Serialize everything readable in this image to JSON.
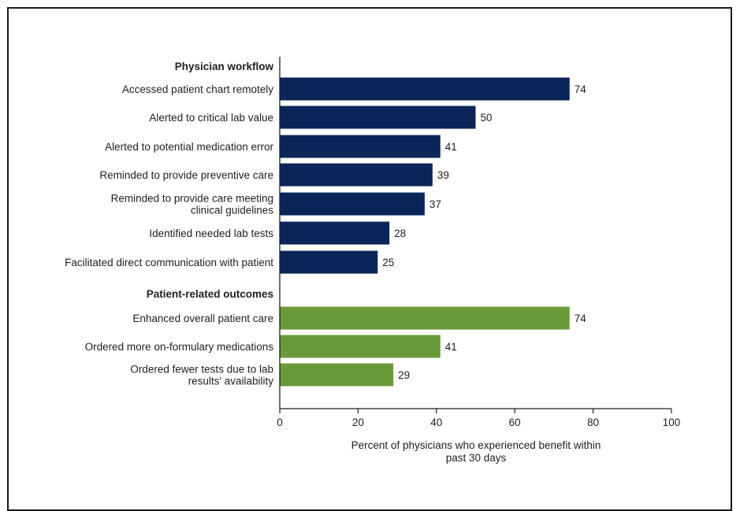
{
  "chart_data": {
    "type": "bar",
    "orientation": "horizontal",
    "groups": [
      {
        "label": "Physician workflow",
        "color": "#0b2558",
        "items": [
          {
            "label": [
              "Accessed patient chart remotely"
            ],
            "value": 74
          },
          {
            "label": [
              "Alerted to critical lab value"
            ],
            "value": 50
          },
          {
            "label": [
              "Alerted to potential medication error"
            ],
            "value": 41
          },
          {
            "label": [
              "Reminded to provide preventive care"
            ],
            "value": 39
          },
          {
            "label": [
              "Reminded to provide care meeting",
              "clinical guidelines"
            ],
            "value": 37
          },
          {
            "label": [
              "Identified needed lab tests"
            ],
            "value": 28
          },
          {
            "label": [
              "Facilitated direct communication with patient"
            ],
            "value": 25
          }
        ]
      },
      {
        "label": "Patient-related outcomes",
        "color": "#6a9a3a",
        "items": [
          {
            "label": [
              "Enhanced overall patient care"
            ],
            "value": 74
          },
          {
            "label": [
              "Ordered more on-formulary medications"
            ],
            "value": 41
          },
          {
            "label": [
              "Ordered fewer tests due to lab",
              "results' availability"
            ],
            "value": 29
          }
        ]
      }
    ],
    "xlim": [
      0,
      100
    ],
    "xticks": [
      0,
      20,
      40,
      60,
      80,
      100
    ],
    "xlabel": [
      "Percent of physicians who experienced benefit within",
      "past 30 days"
    ],
    "grid": false
  }
}
